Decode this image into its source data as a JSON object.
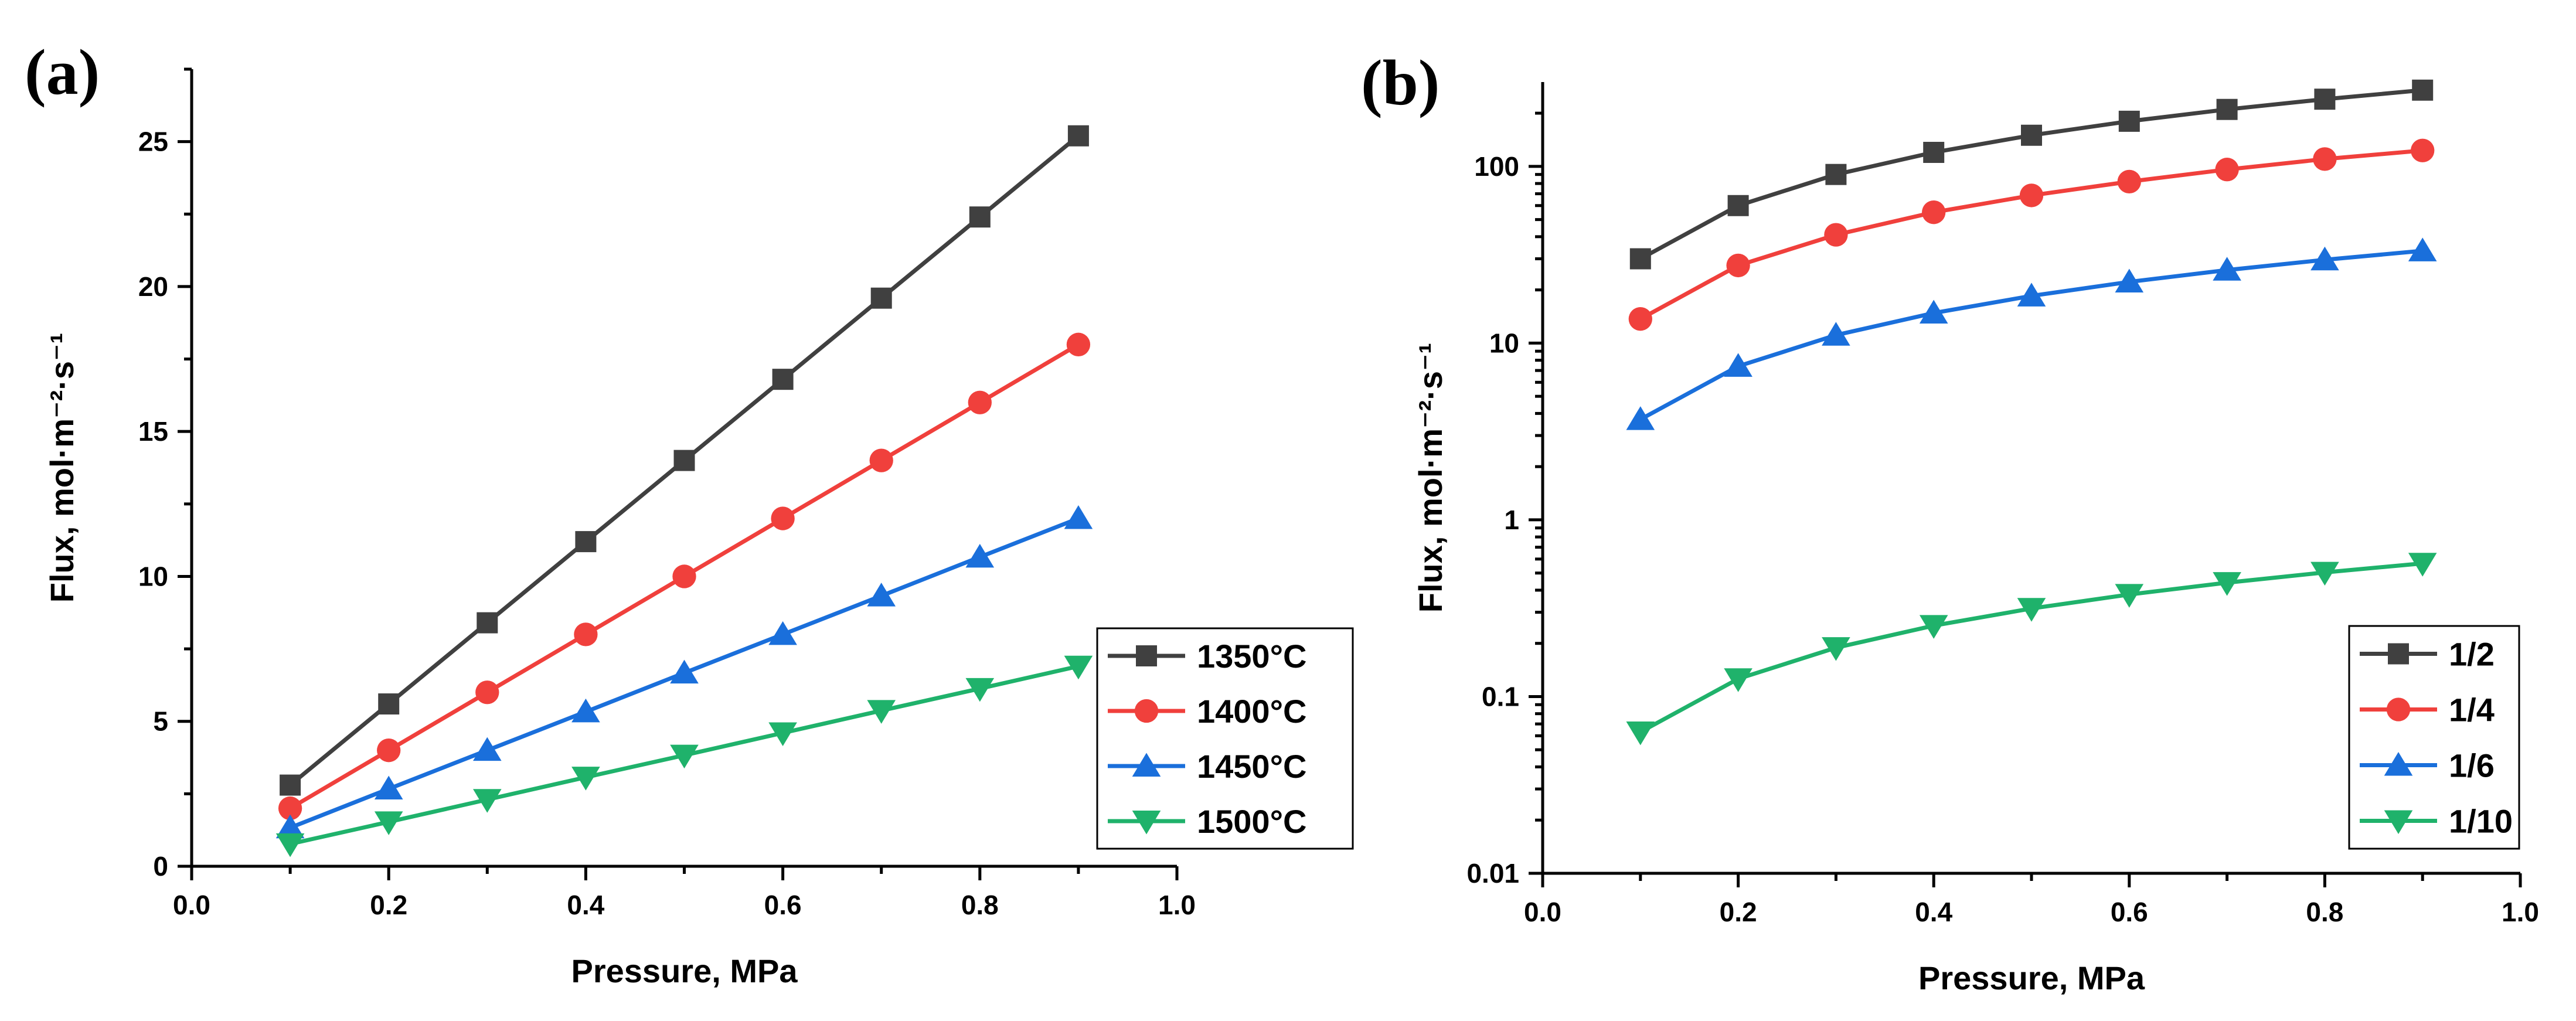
{
  "chart_data": [
    {
      "panel_label": "(a)",
      "type": "line",
      "xlabel": "Pressure, MPa",
      "ylabel": "Flux, mol·m⁻²·s⁻¹",
      "xlim": [
        0.0,
        1.0
      ],
      "ylim": [
        0,
        27.5
      ],
      "yscale": "linear",
      "xticks": [
        0.0,
        0.2,
        0.4,
        0.6,
        0.8,
        1.0
      ],
      "xtick_labels": [
        "0.0",
        "0.2",
        "0.4",
        "0.6",
        "0.8",
        "1.0"
      ],
      "yticks": [
        0,
        5,
        10,
        15,
        20,
        25
      ],
      "ytick_labels": [
        "0",
        "5",
        "10",
        "15",
        "20",
        "25"
      ],
      "legend_position": "bottom-right",
      "x": [
        0.1,
        0.2,
        0.3,
        0.4,
        0.5,
        0.6,
        0.7,
        0.8,
        0.9
      ],
      "series": [
        {
          "name": "1350°C",
          "color": "#404040",
          "marker": "square",
          "values": [
            2.8,
            5.6,
            8.4,
            11.2,
            14.0,
            16.8,
            19.6,
            22.4,
            25.2
          ]
        },
        {
          "name": "1400°C",
          "color": "#f0403c",
          "marker": "circle",
          "values": [
            2.0,
            4.0,
            6.0,
            8.0,
            10.0,
            12.0,
            14.0,
            16.0,
            18.0
          ]
        },
        {
          "name": "1450°C",
          "color": "#1a6fdb",
          "marker": "triangle-up",
          "values": [
            1.33,
            2.67,
            4.0,
            5.33,
            6.67,
            8.0,
            9.33,
            10.67,
            12.0
          ]
        },
        {
          "name": "1500°C",
          "color": "#1fb26b",
          "marker": "triangle-down",
          "values": [
            0.77,
            1.53,
            2.3,
            3.07,
            3.83,
            4.6,
            5.37,
            6.13,
            6.9
          ]
        }
      ]
    },
    {
      "panel_label": "(b)",
      "type": "line",
      "xlabel": "Pressure, MPa",
      "ylabel": "Flux, mol·m⁻²·s⁻¹",
      "xlim": [
        0.0,
        1.0
      ],
      "ylim": [
        0.01,
        300
      ],
      "yscale": "log",
      "xticks": [
        0.0,
        0.2,
        0.4,
        0.6,
        0.8,
        1.0
      ],
      "xtick_labels": [
        "0.0",
        "0.2",
        "0.4",
        "0.6",
        "0.8",
        "1.0"
      ],
      "yticks": [
        0.01,
        0.1,
        1,
        10,
        100
      ],
      "ytick_labels": [
        "0.01",
        "0.1",
        "1",
        "10",
        "100"
      ],
      "legend_position": "bottom-right",
      "x": [
        0.1,
        0.2,
        0.3,
        0.4,
        0.5,
        0.6,
        0.7,
        0.8,
        0.9
      ],
      "series": [
        {
          "name": "1/2",
          "color": "#404040",
          "marker": "square",
          "values": [
            30,
            60,
            90,
            120,
            150,
            180,
            210,
            240,
            270
          ]
        },
        {
          "name": "1/4",
          "color": "#f0403c",
          "marker": "circle",
          "values": [
            13.7,
            27.5,
            41,
            55,
            68.5,
            82,
            96,
            110,
            123
          ]
        },
        {
          "name": "1/6",
          "color": "#1a6fdb",
          "marker": "triangle-up",
          "values": [
            3.7,
            7.4,
            11.1,
            14.8,
            18.5,
            22.2,
            25.9,
            29.6,
            33.3
          ]
        },
        {
          "name": "1/10",
          "color": "#1fb26b",
          "marker": "triangle-down",
          "values": [
            0.063,
            0.126,
            0.189,
            0.252,
            0.315,
            0.378,
            0.441,
            0.504,
            0.567
          ]
        }
      ]
    }
  ]
}
